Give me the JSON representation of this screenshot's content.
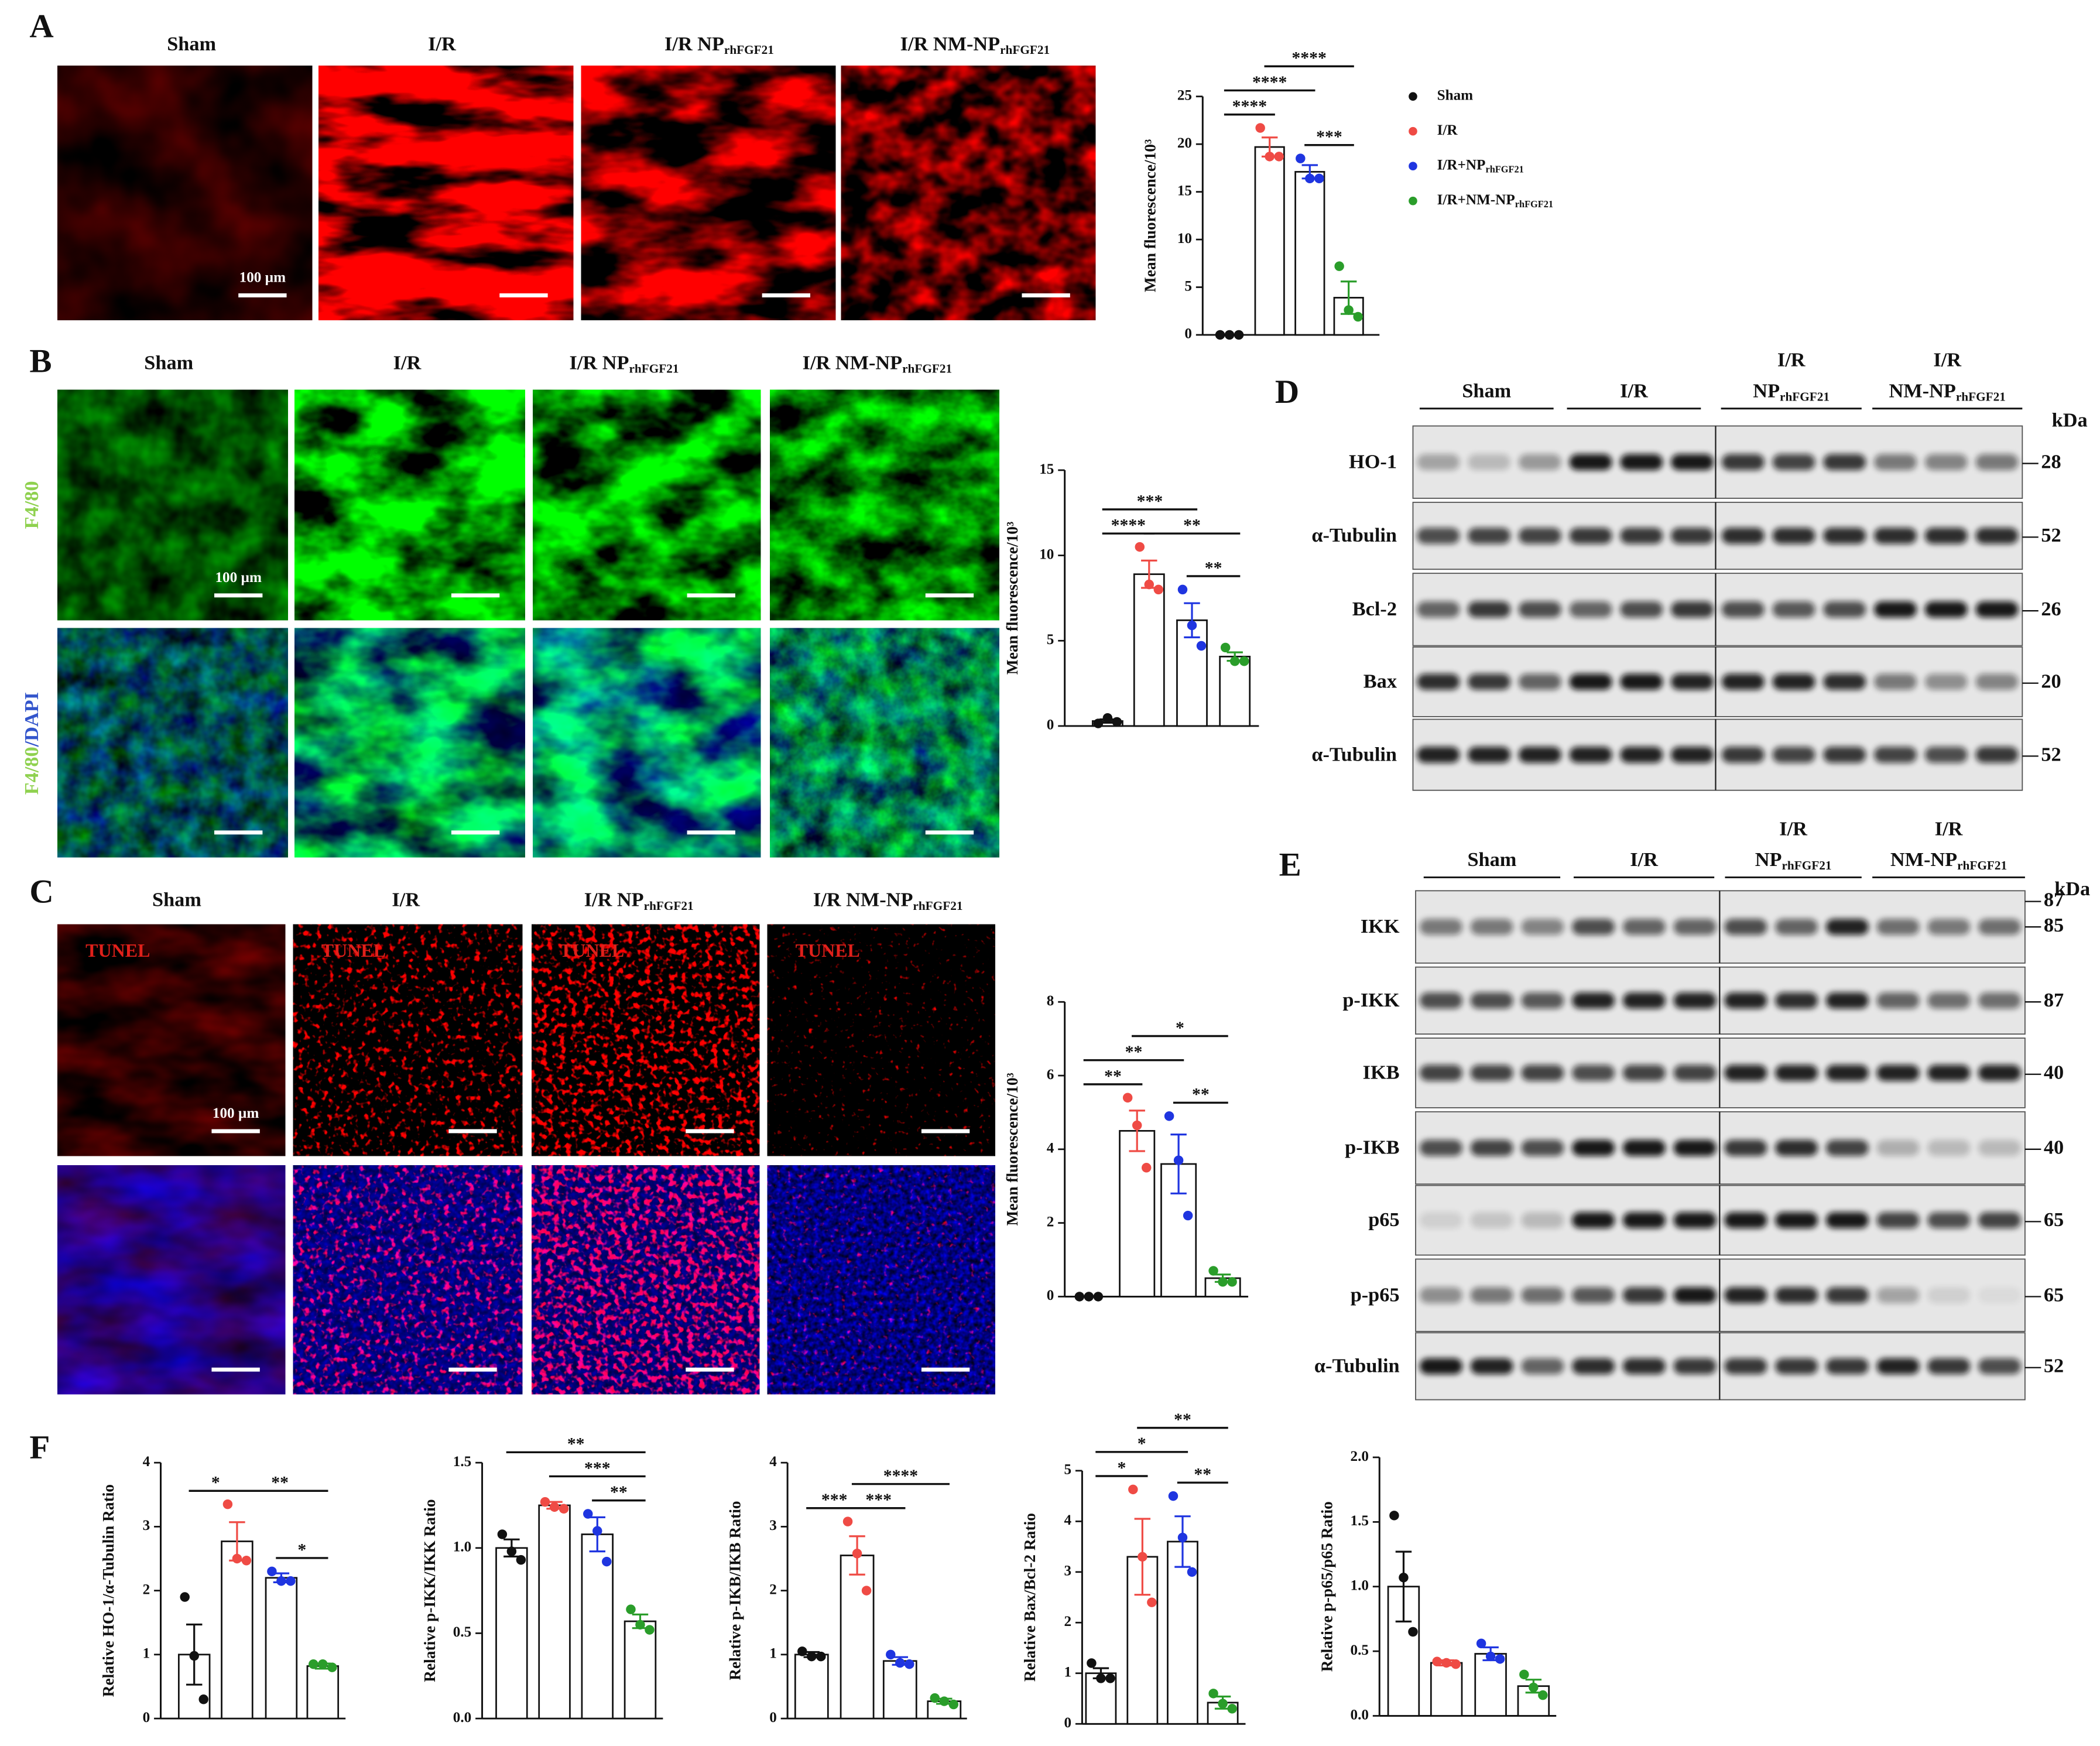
{
  "panel_a": {
    "label": "A",
    "headers": [
      {
        "text": "Sham"
      },
      {
        "text": "I/R"
      },
      {
        "text": "I/R NP",
        "sub": "rhFGF21"
      },
      {
        "text": "I/R NM-NP",
        "sub": "rhFGF21"
      }
    ],
    "scale_label": "100 µm"
  },
  "panel_b": {
    "label": "B",
    "headers": [
      {
        "text": "Sham"
      },
      {
        "text": "I/R"
      },
      {
        "text": "I/R NP",
        "sub": "rhFGF21"
      },
      {
        "text": "I/R NM-NP",
        "sub": "rhFGF21"
      }
    ],
    "row_labels": [
      {
        "parts": [
          "F4/80"
        ]
      },
      {
        "parts": [
          "F4/80",
          "/DAPI"
        ]
      }
    ],
    "scale_label": "100 µm"
  },
  "panel_c": {
    "label": "C",
    "headers": [
      {
        "text": "Sham"
      },
      {
        "text": "I/R"
      },
      {
        "text": "I/R NP",
        "sub": "rhFGF21"
      },
      {
        "text": "I/R NM-NP",
        "sub": "rhFGF21"
      }
    ],
    "stain_label": "TUNEL",
    "scale_label": "100 µm"
  },
  "panel_d": {
    "label": "D",
    "groups": [
      {
        "lines": [
          "Sham"
        ]
      },
      {
        "lines": [
          "I/R"
        ]
      },
      {
        "lines": [
          "I/R",
          "NP"
        ],
        "sub": "rhFGF21"
      },
      {
        "lines": [
          "I/R",
          "NM-NP"
        ],
        "sub": "rhFGF21"
      }
    ],
    "unit": "kDa",
    "rows": [
      {
        "label": "HO-1",
        "kda": [
          "28"
        ]
      },
      {
        "label": "α-Tubulin",
        "kda": [
          "52"
        ]
      },
      {
        "label": "Bcl-2",
        "kda": [
          "26"
        ]
      },
      {
        "label": "Bax",
        "kda": [
          "20"
        ]
      },
      {
        "label": "α-Tubulin",
        "kda": [
          "52"
        ]
      }
    ]
  },
  "panel_e": {
    "label": "E",
    "groups": [
      {
        "lines": [
          "Sham"
        ]
      },
      {
        "lines": [
          "I/R"
        ]
      },
      {
        "lines": [
          "I/R",
          "NP"
        ],
        "sub": "rhFGF21"
      },
      {
        "lines": [
          "I/R",
          "NM-NP"
        ],
        "sub": "rhFGF21"
      }
    ],
    "unit": "kDa",
    "rows": [
      {
        "label": "IKK",
        "kda": [
          "87",
          "85"
        ]
      },
      {
        "label": "p-IKK",
        "kda": [
          "87"
        ]
      },
      {
        "label": "IKB",
        "kda": [
          "40"
        ]
      },
      {
        "label": "p-IKB",
        "kda": [
          "40"
        ]
      },
      {
        "label": "p65",
        "kda": [
          "65"
        ]
      },
      {
        "label": "p-p65",
        "kda": [
          "65"
        ]
      },
      {
        "label": "α-Tubulin",
        "kda": [
          "52"
        ]
      }
    ]
  },
  "panel_f": {
    "label": "F"
  },
  "chart_data": [
    {
      "type": "bar",
      "ylabel": "Mean fluorescence/10³",
      "categories": [
        null
      ],
      "ylim": [
        0,
        25
      ],
      "yticks": [
        0,
        5,
        10,
        15,
        20,
        25
      ],
      "series": [
        {
          "name": "Sham",
          "color": "#111111",
          "values": [
            0
          ],
          "errors": [
            0
          ],
          "points": [
            [
              0,
              0,
              0
            ]
          ]
        },
        {
          "name": "I/R",
          "color": "#ef4b45",
          "values": [
            19.7
          ],
          "errors": [
            1.0
          ],
          "points": [
            [
              21.7,
              18.7,
              18.7
            ]
          ]
        },
        {
          "name": "I/R+NP",
          "name_sub": "rhFGF21",
          "color": "#1f35e0",
          "values": [
            17.1
          ],
          "errors": [
            0.7
          ],
          "points": [
            [
              18.5,
              16.4,
              16.4
            ]
          ]
        },
        {
          "name": "I/R+NM-NP",
          "name_sub": "rhFGF21",
          "color": "#2a9d2a",
          "values": [
            3.9
          ],
          "errors": [
            1.7
          ],
          "points": [
            [
              7.2,
              2.6,
              1.9
            ]
          ]
        }
      ],
      "significance": [
        {
          "between": [
            2,
            3
          ],
          "label": "***"
        },
        {
          "between": [
            0,
            1
          ],
          "label": "****"
        },
        {
          "between": [
            0,
            2
          ],
          "label": "****"
        },
        {
          "between": [
            1,
            3
          ],
          "label": "****"
        }
      ]
    },
    {
      "type": "bar",
      "ylabel": "Mean fluorescence/10³",
      "categories": [
        null
      ],
      "ylim": [
        0,
        15
      ],
      "yticks": [
        0,
        5,
        10,
        15
      ],
      "series": [
        {
          "color": "#111111",
          "values": [
            0.29
          ],
          "errors": [
            0.1
          ],
          "points": [
            [
              0.15,
              0.47,
              0.24
            ]
          ]
        },
        {
          "color": "#ef4b45",
          "values": [
            8.9
          ],
          "errors": [
            0.8
          ],
          "points": [
            [
              10.5,
              8.3,
              8.0
            ]
          ]
        },
        {
          "color": "#1f35e0",
          "values": [
            6.2
          ],
          "errors": [
            1.0
          ],
          "points": [
            [
              8.0,
              5.9,
              4.7
            ]
          ]
        },
        {
          "color": "#2a9d2a",
          "values": [
            4.07
          ],
          "errors": [
            0.25
          ],
          "points": [
            [
              4.6,
              3.8,
              3.8
            ]
          ]
        }
      ],
      "significance": [
        {
          "between": [
            2,
            3
          ],
          "label": "**"
        },
        {
          "between": [
            0,
            1
          ],
          "label": "****"
        },
        {
          "between": [
            1,
            3
          ],
          "label": "**"
        },
        {
          "between": [
            0,
            2
          ],
          "label": "***"
        }
      ]
    },
    {
      "type": "bar",
      "ylabel": "Mean fluorescence/10³",
      "categories": [
        null
      ],
      "ylim": [
        0,
        8
      ],
      "yticks": [
        0,
        2,
        4,
        6,
        8
      ],
      "series": [
        {
          "color": "#111111",
          "values": [
            0
          ],
          "errors": [
            0
          ],
          "points": [
            [
              0,
              0,
              0
            ]
          ]
        },
        {
          "color": "#ef4b45",
          "values": [
            4.5
          ],
          "errors": [
            0.55
          ],
          "points": [
            [
              5.4,
              4.65,
              3.5
            ]
          ]
        },
        {
          "color": "#1f35e0",
          "values": [
            3.6
          ],
          "errors": [
            0.8
          ],
          "points": [
            [
              4.9,
              3.7,
              2.2
            ]
          ]
        },
        {
          "color": "#2a9d2a",
          "values": [
            0.5
          ],
          "errors": [
            0.1
          ],
          "points": [
            [
              0.7,
              0.4,
              0.4
            ]
          ]
        }
      ],
      "significance": [
        {
          "between": [
            2,
            3
          ],
          "label": "**"
        },
        {
          "between": [
            0,
            1
          ],
          "label": "**"
        },
        {
          "between": [
            0,
            2
          ],
          "label": "**"
        },
        {
          "between": [
            1,
            3
          ],
          "label": "*"
        }
      ]
    },
    {
      "type": "bar",
      "ylabel": "Relative HO-1/α-Tubulin Ratio",
      "categories": [
        null
      ],
      "ylim": [
        0,
        4
      ],
      "yticks": [
        0,
        1,
        2,
        3,
        4
      ],
      "series": [
        {
          "color": "#111111",
          "values": [
            1.0
          ],
          "errors": [
            0.47
          ],
          "points": [
            [
              1.9,
              0.98,
              0.3
            ]
          ]
        },
        {
          "color": "#ef4b45",
          "values": [
            2.77
          ],
          "errors": [
            0.3
          ],
          "points": [
            [
              3.35,
              2.5,
              2.47
            ]
          ]
        },
        {
          "color": "#1f35e0",
          "values": [
            2.2
          ],
          "errors": [
            0.07
          ],
          "points": [
            [
              2.3,
              2.15,
              2.15
            ]
          ]
        },
        {
          "color": "#2a9d2a",
          "values": [
            0.82
          ],
          "errors": [
            0.04
          ],
          "points": [
            [
              0.85,
              0.85,
              0.8
            ]
          ]
        }
      ],
      "significance": [
        {
          "between": [
            2,
            3
          ],
          "label": "*"
        },
        {
          "between": [
            0,
            1
          ],
          "label": "*"
        },
        {
          "between": [
            1,
            3
          ],
          "label": "**"
        }
      ]
    },
    {
      "type": "bar",
      "ylabel": "Relative p-IKK/IKK Ratio",
      "categories": [
        null
      ],
      "ylim": [
        0,
        1.5
      ],
      "yticks": [
        {
          "value": 0,
          "label": "0.0"
        },
        0.5,
        {
          "value": 1,
          "label": "1.0"
        },
        1.5
      ],
      "series": [
        {
          "color": "#111111",
          "values": [
            1.0
          ],
          "errors": [
            0.05
          ],
          "points": [
            [
              1.08,
              0.98,
              0.93
            ]
          ]
        },
        {
          "color": "#ef4b45",
          "values": [
            1.25
          ],
          "errors": [
            0.02
          ],
          "points": [
            [
              1.27,
              1.24,
              1.23
            ]
          ]
        },
        {
          "color": "#1f35e0",
          "values": [
            1.08
          ],
          "errors": [
            0.1
          ],
          "points": [
            [
              1.2,
              1.1,
              0.92
            ]
          ]
        },
        {
          "color": "#2a9d2a",
          "values": [
            0.57
          ],
          "errors": [
            0.04
          ],
          "points": [
            [
              0.64,
              0.55,
              0.52
            ]
          ]
        }
      ],
      "significance": [
        {
          "between": [
            2,
            3
          ],
          "label": "**"
        },
        {
          "between": [
            1,
            3
          ],
          "label": "***"
        },
        {
          "between": [
            0,
            3
          ],
          "label": "**"
        }
      ]
    },
    {
      "type": "bar",
      "ylabel": "Relative p-IKB/IKB Ratio",
      "categories": [
        null
      ],
      "ylim": [
        0,
        4
      ],
      "yticks": [
        0,
        1,
        2,
        3,
        4
      ],
      "series": [
        {
          "color": "#111111",
          "values": [
            1.0
          ],
          "errors": [
            0.04
          ],
          "points": [
            [
              1.05,
              0.97,
              0.97
            ]
          ]
        },
        {
          "color": "#ef4b45",
          "values": [
            2.55
          ],
          "errors": [
            0.3
          ],
          "points": [
            [
              3.08,
              2.58,
              2.0
            ]
          ]
        },
        {
          "color": "#1f35e0",
          "values": [
            0.9
          ],
          "errors": [
            0.06
          ],
          "points": [
            [
              1.0,
              0.87,
              0.85
            ]
          ]
        },
        {
          "color": "#2a9d2a",
          "values": [
            0.27
          ],
          "errors": [
            0.04
          ],
          "points": [
            [
              0.32,
              0.27,
              0.22
            ]
          ]
        }
      ],
      "significance": [
        {
          "between": [
            0,
            1
          ],
          "label": "***"
        },
        {
          "between": [
            1,
            2
          ],
          "label": "***"
        },
        {
          "between": [
            1,
            3
          ],
          "label": "****"
        }
      ]
    },
    {
      "type": "bar",
      "ylabel": "Relative Bax/Bcl-2 Ratio",
      "categories": [
        null
      ],
      "ylim": [
        0,
        5
      ],
      "yticks": [
        0,
        1,
        2,
        3,
        4,
        5
      ],
      "series": [
        {
          "color": "#111111",
          "values": [
            1.0
          ],
          "errors": [
            0.1
          ],
          "points": [
            [
              1.2,
              0.9,
              0.9
            ]
          ]
        },
        {
          "color": "#ef4b45",
          "values": [
            3.3
          ],
          "errors": [
            0.75
          ],
          "points": [
            [
              4.63,
              3.3,
              2.4
            ]
          ]
        },
        {
          "color": "#1f35e0",
          "values": [
            3.6
          ],
          "errors": [
            0.5
          ],
          "points": [
            [
              4.5,
              3.68,
              3.0
            ]
          ]
        },
        {
          "color": "#2a9d2a",
          "values": [
            0.42
          ],
          "errors": [
            0.12
          ],
          "points": [
            [
              0.6,
              0.4,
              0.3
            ]
          ]
        }
      ],
      "significance": [
        {
          "between": [
            0,
            1
          ],
          "label": "*"
        },
        {
          "between": [
            2,
            3
          ],
          "label": "**"
        },
        {
          "between": [
            0,
            2
          ],
          "label": "*"
        },
        {
          "between": [
            1,
            3
          ],
          "label": "**"
        }
      ]
    },
    {
      "type": "bar",
      "ylabel": "Relative p-p65/p65 Ratio",
      "categories": [
        null
      ],
      "ylim": [
        0,
        2
      ],
      "yticks": [
        {
          "value": 0,
          "label": "0.0"
        },
        0.5,
        {
          "value": 1,
          "label": "1.0"
        },
        1.5,
        {
          "value": 2,
          "label": "2.0"
        }
      ],
      "series": [
        {
          "color": "#111111",
          "values": [
            1.0
          ],
          "errors": [
            0.27
          ],
          "points": [
            [
              1.55,
              1.07,
              0.65
            ]
          ]
        },
        {
          "color": "#ef4b45",
          "values": [
            0.41
          ],
          "errors": [
            0.02
          ],
          "points": [
            [
              0.42,
              0.41,
              0.4
            ]
          ]
        },
        {
          "color": "#1f35e0",
          "values": [
            0.48
          ],
          "errors": [
            0.05
          ],
          "points": [
            [
              0.56,
              0.46,
              0.44
            ]
          ]
        },
        {
          "color": "#2a9d2a",
          "values": [
            0.23
          ],
          "errors": [
            0.05
          ],
          "points": [
            [
              0.32,
              0.22,
              0.16
            ]
          ]
        }
      ],
      "significance": []
    }
  ]
}
